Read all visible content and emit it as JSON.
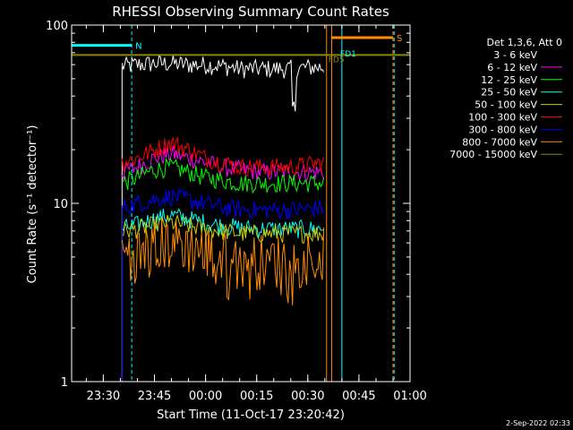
{
  "chart_data": {
    "type": "line",
    "title": "RHESSI Observing Summary Count Rates",
    "xlabel": "Start Time (11-Oct-17 23:20:42)",
    "ylabel": "Count Rate (s⁻¹ detector⁻¹)",
    "yscale": "log",
    "ylim": [
      1,
      100
    ],
    "y_ticks": [
      {
        "value": 1,
        "label": "1"
      },
      {
        "value": 10,
        "label": "10"
      },
      {
        "value": 100,
        "label": "100"
      }
    ],
    "xlim": [
      "23:20:42",
      "01:00:00"
    ],
    "x_ticks": [
      "23:30",
      "23:45",
      "00:00",
      "00:15",
      "00:30",
      "00:45",
      "01:00"
    ],
    "data_start": "23:35:30",
    "data_end": "00:35:00",
    "legend_title": "Det 1,3,6, Att 0",
    "legend_position": "right",
    "series": [
      {
        "name": "3 - 6 keV",
        "color": "#000000",
        "t": [
          "23:35:30",
          "23:40",
          "23:45",
          "23:50",
          "23:55",
          "00:00",
          "00:05",
          "00:10",
          "00:15",
          "00:20",
          "00:25",
          "00:30",
          "00:35"
        ],
        "values": [
          59,
          60,
          61,
          61,
          60,
          60,
          59,
          57,
          57,
          57,
          57,
          58,
          58
        ]
      },
      {
        "name": "6 - 12 keV",
        "color": "#ff00ff",
        "t": [
          "23:35:30",
          "23:40",
          "23:45",
          "23:50",
          "23:55",
          "00:00",
          "00:05",
          "00:10",
          "00:15",
          "00:20",
          "00:25",
          "00:30",
          "00:35"
        ],
        "values": [
          15,
          16,
          18,
          19,
          18,
          17,
          16,
          15.5,
          15,
          15,
          15,
          15,
          15
        ]
      },
      {
        "name": "12 - 25 keV",
        "color": "#00ff00",
        "t": [
          "23:35:30",
          "23:40",
          "23:45",
          "23:50",
          "23:55",
          "00:00",
          "00:05",
          "00:10",
          "00:15",
          "00:20",
          "00:25",
          "00:30",
          "00:35"
        ],
        "values": [
          13,
          14,
          15.5,
          16,
          15,
          14,
          13.5,
          13,
          13,
          13,
          13,
          13,
          13
        ]
      },
      {
        "name": "25 - 50 keV",
        "color": "#00ffff",
        "t": [
          "23:35:30",
          "23:40",
          "23:45",
          "23:50",
          "23:55",
          "00:00",
          "00:05",
          "00:10",
          "00:15",
          "00:20",
          "00:25",
          "00:30",
          "00:35"
        ],
        "values": [
          7.2,
          7.6,
          8.2,
          8.6,
          8.2,
          7.8,
          7.5,
          7.3,
          7.2,
          7.2,
          7.2,
          7.2,
          7.2
        ]
      },
      {
        "name": "50 - 100 keV",
        "color": "#cccc00",
        "t": [
          "23:35:30",
          "23:40",
          "23:45",
          "23:50",
          "23:55",
          "00:00",
          "00:05",
          "00:10",
          "00:15",
          "00:20",
          "00:25",
          "00:30",
          "00:35"
        ],
        "values": [
          7.0,
          7.2,
          7.6,
          7.8,
          7.5,
          7.2,
          7.0,
          6.8,
          6.8,
          6.8,
          6.8,
          6.8,
          6.8
        ]
      },
      {
        "name": "100 - 300 keV",
        "color": "#ff0000",
        "t": [
          "23:35:30",
          "23:40",
          "23:45",
          "23:50",
          "23:55",
          "00:00",
          "00:05",
          "00:10",
          "00:15",
          "00:20",
          "00:25",
          "00:30",
          "00:35"
        ],
        "values": [
          17,
          18,
          20,
          22,
          20,
          18,
          17,
          16,
          16,
          16,
          16,
          16.5,
          17
        ]
      },
      {
        "name": "300 - 800 keV",
        "color": "#0000ff",
        "t": [
          "23:35:30",
          "23:40",
          "23:45",
          "23:50",
          "23:55",
          "00:00",
          "00:05",
          "00:10",
          "00:15",
          "00:20",
          "00:25",
          "00:30",
          "00:35"
        ],
        "values": [
          9.5,
          10,
          10.5,
          11,
          10.5,
          10,
          9.5,
          9.3,
          9.2,
          9.2,
          9.2,
          9.3,
          9.5
        ]
      },
      {
        "name": "800 - 7000 keV",
        "color": "#ff8c00",
        "t": [
          "23:35:30",
          "23:40",
          "23:45",
          "23:50",
          "23:55",
          "00:00",
          "00:05",
          "00:10",
          "00:15",
          "00:20",
          "00:25",
          "00:30",
          "00:35"
        ],
        "values": [
          5.2,
          5.5,
          6.0,
          6.3,
          6.0,
          5.6,
          5.3,
          5.0,
          5.0,
          5.0,
          5.0,
          5.2,
          5.5
        ]
      },
      {
        "name": "7000 - 15000 keV",
        "color": "#8b8b00",
        "t": [
          "23:35:30",
          "23:40",
          "23:45",
          "23:50",
          "23:55",
          "00:00",
          "00:05",
          "00:10",
          "00:15",
          "00:20",
          "00:25",
          "00:30",
          "00:35"
        ],
        "values": [
          68,
          68,
          68,
          68,
          68,
          68,
          68,
          68,
          68,
          68,
          68,
          68,
          68
        ]
      }
    ],
    "annotations": [
      {
        "label": "N",
        "color": "#00ffff",
        "start": "23:20:42",
        "end": "23:38:20",
        "level": 77
      },
      {
        "label": "S",
        "color": "#ff8c00",
        "start": "00:37:00",
        "end": "00:55:00",
        "level": 85
      },
      {
        "label": "FD5",
        "color": "#8b8b00",
        "time": "00:35:30",
        "level": 64
      },
      {
        "label": "FD1",
        "color": "#00ffff",
        "time": "00:39:00",
        "level": 69
      }
    ],
    "vertical_markers": [
      {
        "time": "23:20:42",
        "color": "#00ffff",
        "style": "solid"
      },
      {
        "time": "23:38:20",
        "color": "#00ffff",
        "style": "dashed"
      },
      {
        "time": "00:35:30",
        "color": "#ff8c00",
        "style": "solid"
      },
      {
        "time": "00:37:00",
        "color": "#ff8c00",
        "style": "solid"
      },
      {
        "time": "00:40:00",
        "color": "#00ffff",
        "style": "solid"
      },
      {
        "time": "00:55:00",
        "color": "#ff8c00",
        "style": "dashed"
      },
      {
        "time": "00:55:20",
        "color": "#00ffff",
        "style": "dashed"
      }
    ],
    "footer_timestamp": "2-Sep-2022 02:33"
  }
}
